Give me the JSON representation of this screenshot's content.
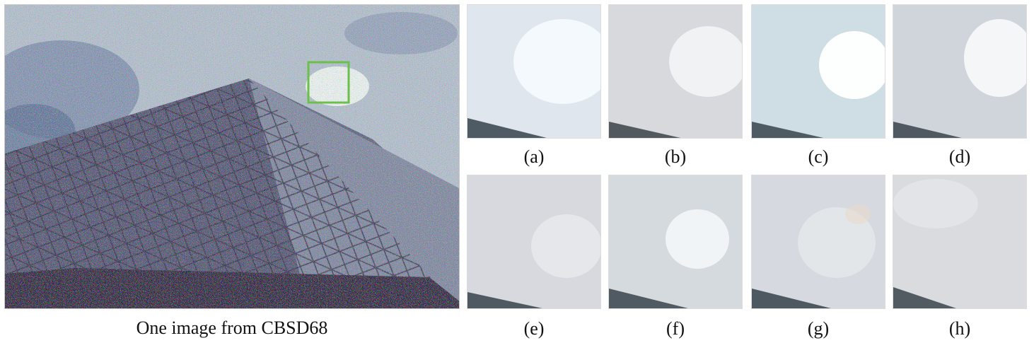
{
  "figure": {
    "main_caption": "One image from CBSD68",
    "highlight_color": "#6cc04a",
    "panels": [
      {
        "label": "(a)",
        "base": "#dfe6ee",
        "bright": "#f8fbff",
        "roof": "#4e5a64"
      },
      {
        "label": "(b)",
        "base": "#d8d9dc",
        "bright": "#f4f4f5",
        "roof": "#52595f"
      },
      {
        "label": "(c)",
        "base": "#cfdde4",
        "bright": "#ffffff",
        "roof": "#4f5b63"
      },
      {
        "label": "(d)",
        "base": "#cfd5db",
        "bright": "#f6f8fa",
        "roof": "#505961"
      },
      {
        "label": "(e)",
        "base": "#d8d9df",
        "bright": "#e9eaee",
        "roof": "#4f5961"
      },
      {
        "label": "(f)",
        "base": "#d5dadf",
        "bright": "#f3f6f8",
        "roof": "#505a62"
      },
      {
        "label": "(g)",
        "base": "#d6dae0",
        "bright": "#e6e9ec",
        "roof": "#4d5860"
      },
      {
        "label": "(h)",
        "base": "#d9dbde",
        "bright": "#e4e6e8",
        "roof": "#525b62"
      }
    ]
  }
}
